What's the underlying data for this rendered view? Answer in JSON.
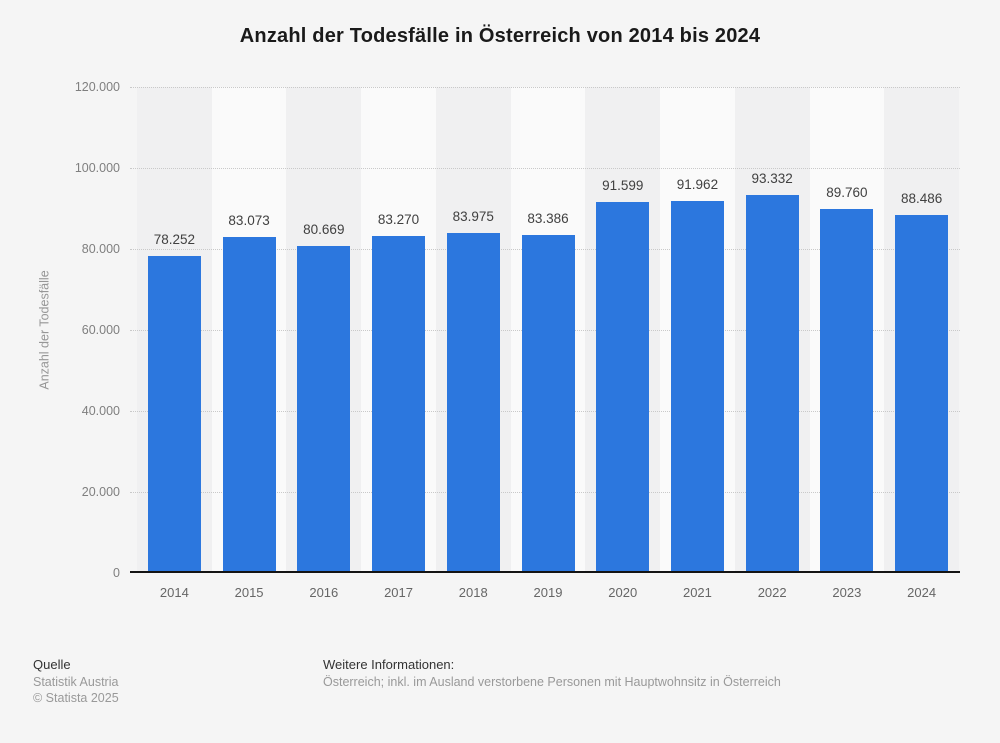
{
  "title": "Anzahl der Todesfälle in Österreich von 2014 bis 2024",
  "chart_data": {
    "type": "bar",
    "title": "Anzahl der Todesfälle in Österreich von 2014 bis 2024",
    "categories": [
      "2014",
      "2015",
      "2016",
      "2017",
      "2018",
      "2019",
      "2020",
      "2021",
      "2022",
      "2023",
      "2024"
    ],
    "values": [
      78252,
      83073,
      80669,
      83270,
      83975,
      83386,
      91599,
      91962,
      93332,
      89760,
      88486
    ],
    "value_labels": [
      "78.252",
      "83.073",
      "80.669",
      "83.270",
      "83.975",
      "83.386",
      "91.599",
      "91.962",
      "93.332",
      "89.760",
      "88.486"
    ],
    "xlabel": "",
    "ylabel": "Anzahl der Todesfälle",
    "ylim": [
      0,
      120000
    ],
    "ytick_step": 20000,
    "ytick_labels": [
      "0",
      "20.000",
      "40.000",
      "60.000",
      "80.000",
      "100.000",
      "120.000"
    ],
    "grid": "horizontal-dotted",
    "legend": "none",
    "bar_color": "#2c77de",
    "column_band_colors": [
      "#f0f0f1",
      "#fafafa"
    ]
  },
  "footer": {
    "source_heading": "Quelle",
    "source_lines": [
      "Statistik Austria",
      "© Statista 2025"
    ],
    "info_heading": "Weitere Informationen:",
    "info_text": "Österreich; inkl. im Ausland verstorbene Personen mit Hauptwohnsitz in Österreich"
  },
  "colors": {
    "background": "#f5f5f5",
    "bar": "#2c77de",
    "title_text": "#1a1a1a",
    "axis_text": "#7f7f7f",
    "value_text": "#404040",
    "footer_heading_text": "#333333",
    "footer_muted_text": "#999999",
    "axis_line": "#141414",
    "gridline": "#c9c9c9"
  }
}
